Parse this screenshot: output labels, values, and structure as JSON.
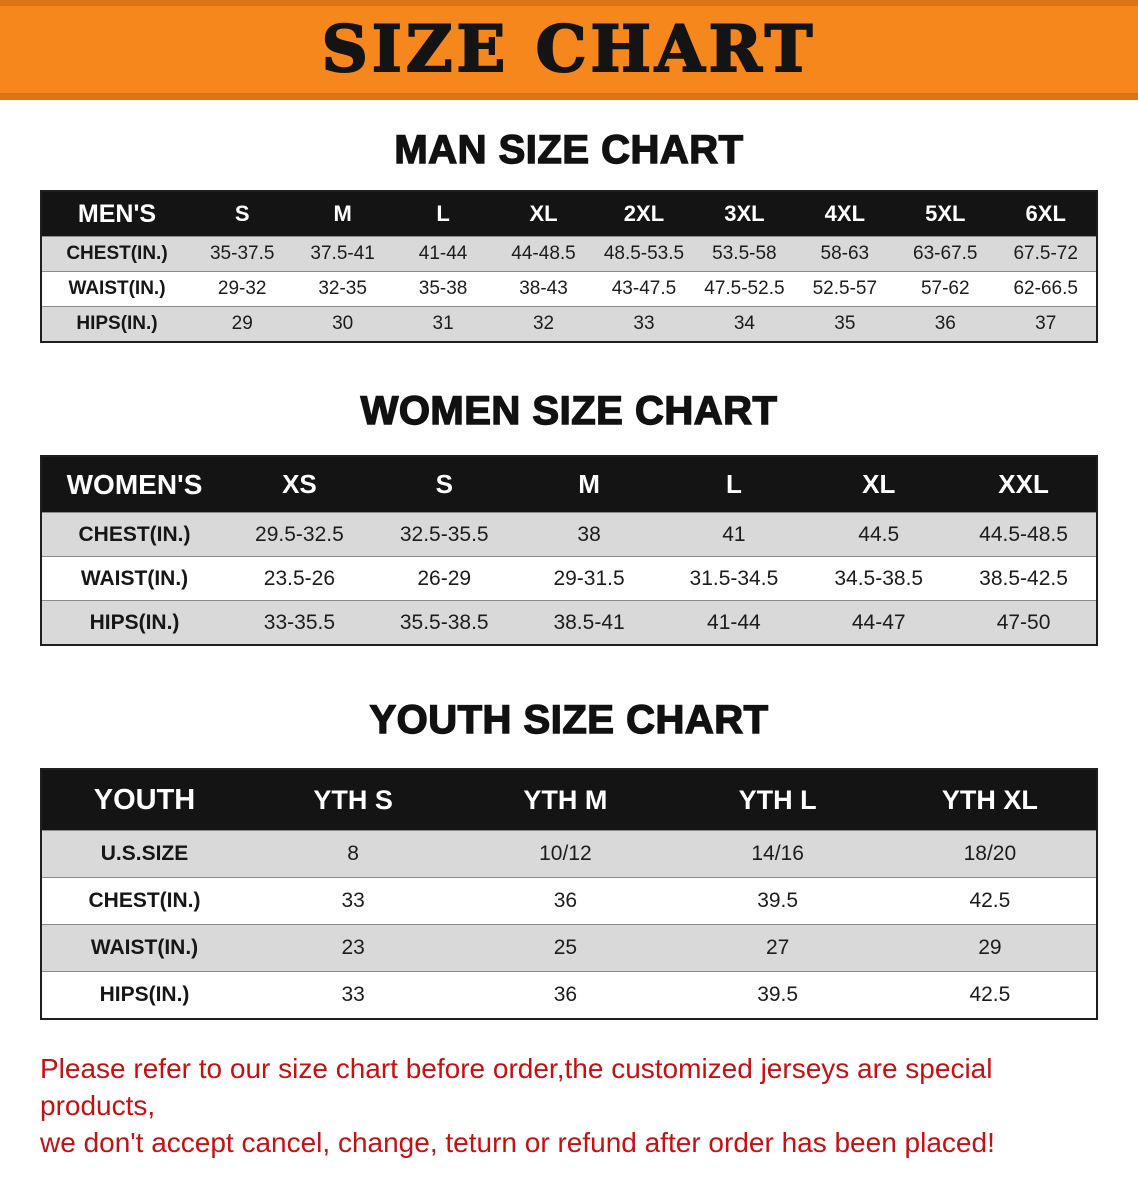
{
  "banner": {
    "title": "SIZE CHART"
  },
  "colors": {
    "banner_bg": "#F6871D",
    "banner_edge": "#DC7414",
    "header_bar": "#141414",
    "row_shade": "#D9D9D9",
    "note_text": "#C41111",
    "title_text": "#141414"
  },
  "chart_data": [
    {
      "type": "table",
      "title": "MAN SIZE CHART",
      "columns": [
        "MEN'S",
        "S",
        "M",
        "L",
        "XL",
        "2XL",
        "3XL",
        "4XL",
        "5XL",
        "6XL"
      ],
      "rows": [
        [
          "CHEST(IN.)",
          "35-37.5",
          "37.5-41",
          "41-44",
          "44-48.5",
          "48.5-53.5",
          "53.5-58",
          "58-63",
          "63-67.5",
          "67.5-72"
        ],
        [
          "WAIST(IN.)",
          "29-32",
          "32-35",
          "35-38",
          "38-43",
          "43-47.5",
          "47.5-52.5",
          "52.5-57",
          "57-62",
          "62-66.5"
        ],
        [
          "HIPS(IN.)",
          "29",
          "30",
          "31",
          "32",
          "33",
          "34",
          "35",
          "36",
          "37"
        ]
      ]
    },
    {
      "type": "table",
      "title": "WOMEN SIZE CHART",
      "columns": [
        "WOMEN'S",
        "XS",
        "S",
        "M",
        "L",
        "XL",
        "XXL"
      ],
      "rows": [
        [
          "CHEST(IN.)",
          "29.5-32.5",
          "32.5-35.5",
          "38",
          "41",
          "44.5",
          "44.5-48.5"
        ],
        [
          "WAIST(IN.)",
          "23.5-26",
          "26-29",
          "29-31.5",
          "31.5-34.5",
          "34.5-38.5",
          "38.5-42.5"
        ],
        [
          "HIPS(IN.)",
          "33-35.5",
          "35.5-38.5",
          "38.5-41",
          "41-44",
          "44-47",
          "47-50"
        ]
      ]
    },
    {
      "type": "table",
      "title": "YOUTH SIZE CHART",
      "columns": [
        "YOUTH",
        "YTH S",
        "YTH M",
        "YTH L",
        "YTH XL"
      ],
      "rows": [
        [
          "U.S.SIZE",
          "8",
          "10/12",
          "14/16",
          "18/20"
        ],
        [
          "CHEST(IN.)",
          "33",
          "36",
          "39.5",
          "42.5"
        ],
        [
          "WAIST(IN.)",
          "23",
          "25",
          "27",
          "29"
        ],
        [
          "HIPS(IN.)",
          "33",
          "36",
          "39.5",
          "42.5"
        ]
      ]
    }
  ],
  "footer_note": {
    "line1": "Please refer to our size chart before order,the customized jerseys are special products,",
    "line2": "we don't accept cancel, change, teturn or refund after order has been placed!"
  }
}
